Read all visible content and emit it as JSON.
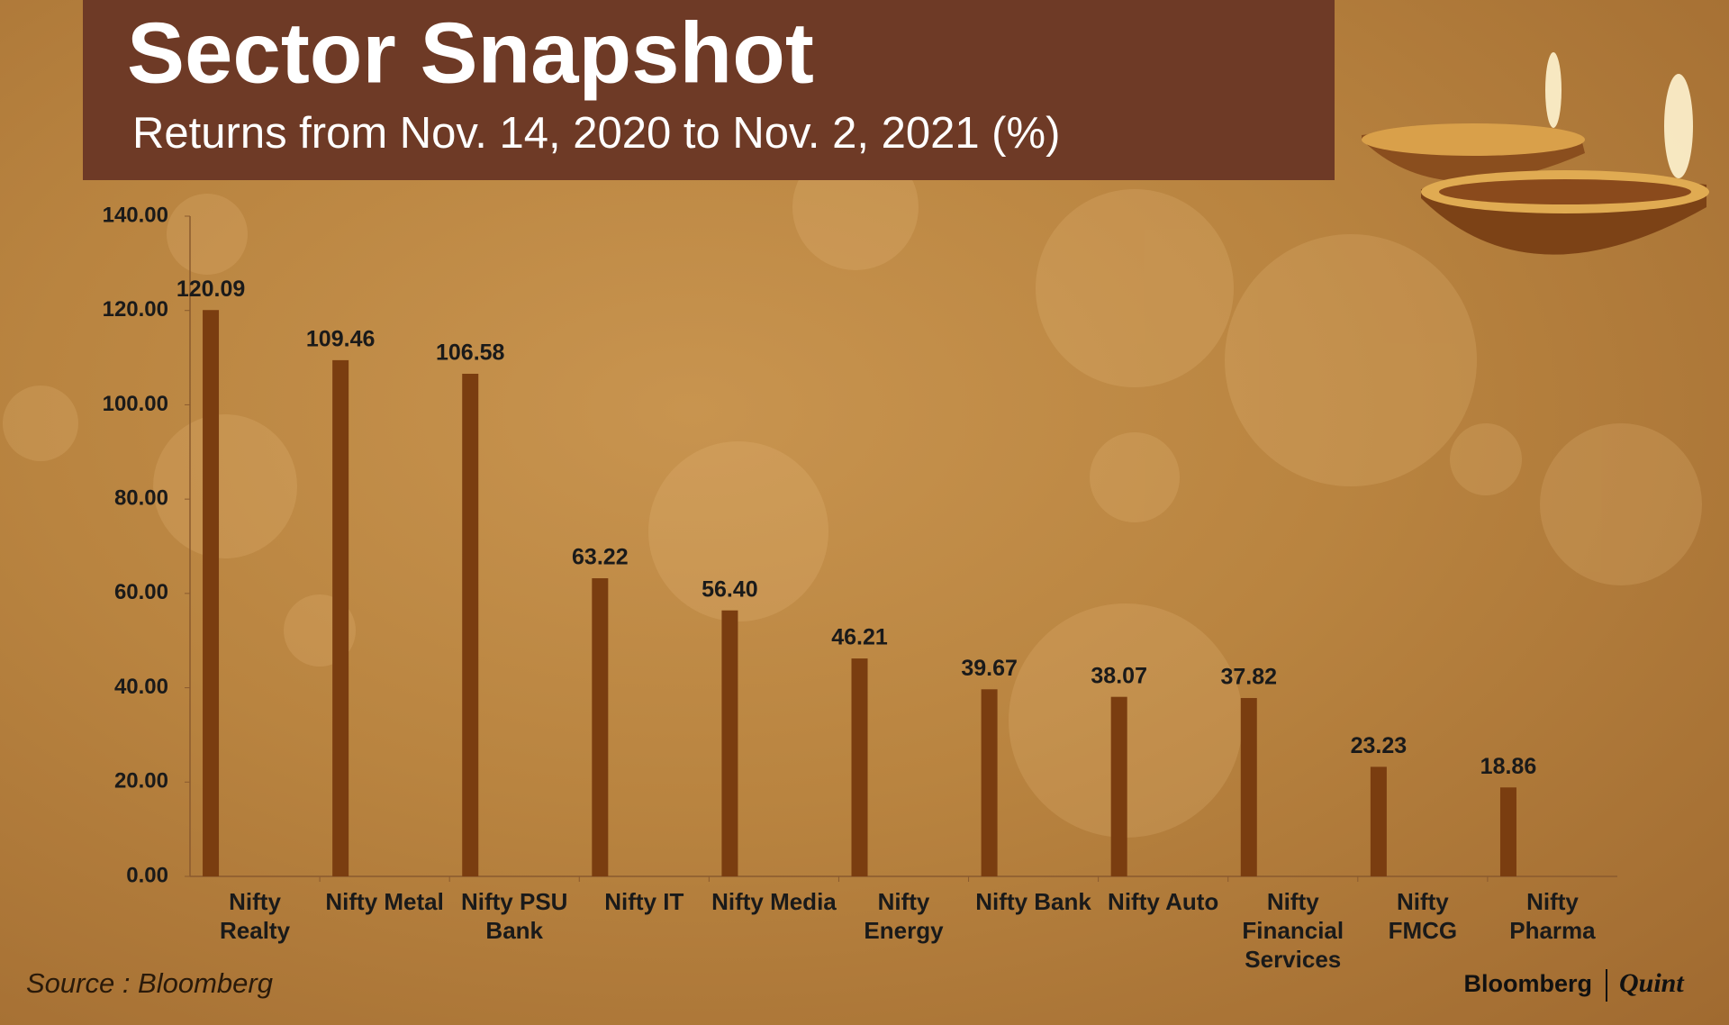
{
  "chart_data": {
    "type": "bar",
    "title": "Sector Snapshot",
    "subtitle": "Returns from Nov. 14, 2020 to Nov. 2, 2021 (%)",
    "categories": [
      "Nifty Realty",
      "Nifty Metal",
      "Nifty PSU Bank",
      "Nifty IT",
      "Nifty Media",
      "Nifty Energy",
      "Nifty Bank",
      "Nifty Auto",
      "Nifty Financial Services",
      "Nifty FMCG",
      "Nifty Pharma"
    ],
    "values": [
      120.09,
      109.46,
      106.58,
      63.22,
      56.4,
      46.21,
      39.67,
      38.07,
      37.82,
      23.23,
      18.86
    ],
    "value_labels": [
      "120.09",
      "109.46",
      "106.58",
      "63.22",
      "56.40",
      "46.21",
      "39.67",
      "38.07",
      "37.82",
      "23.23",
      "18.86"
    ],
    "color": "#7a3d10",
    "ylim": [
      0,
      140
    ],
    "yticks": [
      {
        "value": 0,
        "label": "0.00"
      },
      {
        "value": 20,
        "label": "20.00"
      },
      {
        "value": 40,
        "label": "40.00"
      },
      {
        "value": 60,
        "label": "60.00"
      },
      {
        "value": 80,
        "label": "80.00"
      },
      {
        "value": 100,
        "label": "100.00"
      },
      {
        "value": 120,
        "label": "120.00"
      },
      {
        "value": 140,
        "label": "140.00"
      }
    ],
    "grid": false,
    "source": "Source : Bloomberg",
    "logo": {
      "left": "Bloomberg",
      "right": "Quint"
    }
  }
}
